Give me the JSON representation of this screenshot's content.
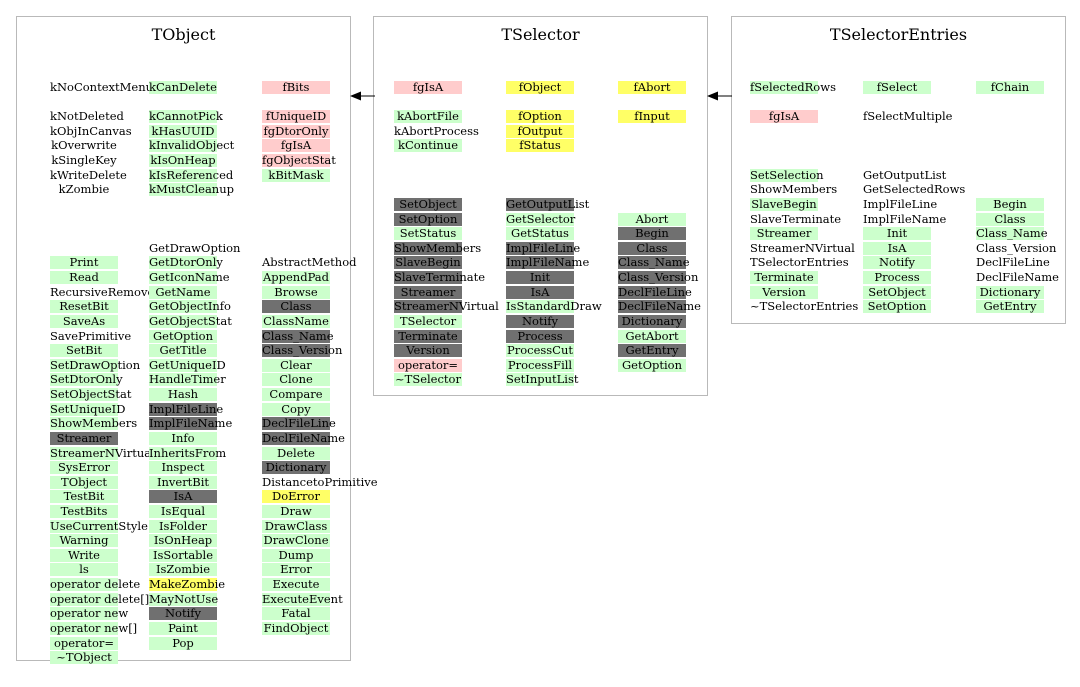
{
  "colors": {
    "green": "#ccffcc",
    "pink": "#ffcccc",
    "yellow": "#ffff66",
    "dark": "#707070",
    "border": "#b9b9b9"
  },
  "classes": [
    {
      "id": "tobject",
      "title": "TObject",
      "columns": [
        {
          "items": [
            [
              "kNoContextMenu",
              ""
            ],
            null,
            [
              "kNotDeleted",
              ""
            ],
            [
              "kObjInCanvas",
              ""
            ],
            [
              "kOverwrite",
              ""
            ],
            [
              "kSingleKey",
              ""
            ],
            [
              "kWriteDelete",
              ""
            ],
            [
              "kZombie",
              ""
            ],
            null,
            null,
            null,
            null,
            [
              "Print",
              "g"
            ],
            [
              "Read",
              "g"
            ],
            [
              "RecursiveRemove",
              ""
            ],
            [
              "ResetBit",
              "g"
            ],
            [
              "SaveAs",
              "g"
            ],
            [
              "SavePrimitive",
              ""
            ],
            [
              "SetBit",
              "g"
            ],
            [
              "SetDrawOption",
              "g"
            ],
            [
              "SetDtorOnly",
              "g"
            ],
            [
              "SetObjectStat",
              "g"
            ],
            [
              "SetUniqueID",
              "g"
            ],
            [
              "ShowMembers",
              "g"
            ],
            [
              "Streamer",
              "d"
            ],
            [
              "StreamerNVirtual",
              "g"
            ],
            [
              "SysError",
              "g"
            ],
            [
              "TObject",
              "g"
            ],
            [
              "TestBit",
              "g"
            ],
            [
              "TestBits",
              "g"
            ],
            [
              "UseCurrentStyle",
              "g"
            ],
            [
              "Warning",
              "g"
            ],
            [
              "Write",
              "g"
            ],
            [
              "ls",
              "g"
            ],
            [
              "operator delete",
              "g"
            ],
            [
              "operator delete[]",
              "g"
            ],
            [
              "operator new",
              "g"
            ],
            [
              "operator new[]",
              "g"
            ],
            [
              "operator=",
              "g"
            ],
            [
              "~TObject",
              "g"
            ]
          ]
        },
        {
          "items": [
            [
              "kCanDelete",
              "g"
            ],
            null,
            [
              "kCannotPick",
              "g"
            ],
            [
              "kHasUUID",
              "g"
            ],
            [
              "kInvalidObject",
              "g"
            ],
            [
              "kIsOnHeap",
              "g"
            ],
            [
              "kIsReferenced",
              "g"
            ],
            [
              "kMustCleanup",
              "g"
            ],
            null,
            null,
            null,
            [
              "GetDrawOption",
              ""
            ],
            [
              "GetDtorOnly",
              "g"
            ],
            [
              "GetIconName",
              "g"
            ],
            [
              "GetName",
              "g"
            ],
            [
              "GetObjectInfo",
              "g"
            ],
            [
              "GetObjectStat",
              "g"
            ],
            [
              "GetOption",
              "g"
            ],
            [
              "GetTitle",
              "g"
            ],
            [
              "GetUniqueID",
              "g"
            ],
            [
              "HandleTimer",
              "g"
            ],
            [
              "Hash",
              "g"
            ],
            [
              "ImplFileLine",
              "d"
            ],
            [
              "ImplFileName",
              "d"
            ],
            [
              "Info",
              "g"
            ],
            [
              "InheritsFrom",
              "g"
            ],
            [
              "Inspect",
              "g"
            ],
            [
              "InvertBit",
              "g"
            ],
            [
              "IsA",
              "d"
            ],
            [
              "IsEqual",
              "g"
            ],
            [
              "IsFolder",
              "g"
            ],
            [
              "IsOnHeap",
              "g"
            ],
            [
              "IsSortable",
              "g"
            ],
            [
              "IsZombie",
              "g"
            ],
            [
              "MakeZombie",
              "y"
            ],
            [
              "MayNotUse",
              "g"
            ],
            [
              "Notify",
              "d"
            ],
            [
              "Paint",
              "g"
            ],
            [
              "Pop",
              "g"
            ]
          ]
        },
        {
          "items": [
            [
              "fBits",
              "p"
            ],
            null,
            [
              "fUniqueID",
              "p"
            ],
            [
              "fgDtorOnly",
              "p"
            ],
            [
              "fgIsA",
              "p"
            ],
            [
              "fgObjectStat",
              "p"
            ],
            [
              "kBitMask",
              "g"
            ],
            null,
            null,
            null,
            null,
            null,
            [
              "AbstractMethod",
              ""
            ],
            [
              "AppendPad",
              "g"
            ],
            [
              "Browse",
              "g"
            ],
            [
              "Class",
              "d"
            ],
            [
              "ClassName",
              "g"
            ],
            [
              "Class_Name",
              "d"
            ],
            [
              "Class_Version",
              "d"
            ],
            [
              "Clear",
              "g"
            ],
            [
              "Clone",
              "g"
            ],
            [
              "Compare",
              "g"
            ],
            [
              "Copy",
              "g"
            ],
            [
              "DeclFileLine",
              "d"
            ],
            [
              "DeclFileName",
              "d"
            ],
            [
              "Delete",
              "g"
            ],
            [
              "Dictionary",
              "d"
            ],
            [
              "DistancetoPrimitive",
              ""
            ],
            [
              "DoError",
              "y"
            ],
            [
              "Draw",
              "g"
            ],
            [
              "DrawClass",
              "g"
            ],
            [
              "DrawClone",
              "g"
            ],
            [
              "Dump",
              "g"
            ],
            [
              "Error",
              "g"
            ],
            [
              "Execute",
              "g"
            ],
            [
              "ExecuteEvent",
              "g"
            ],
            [
              "Fatal",
              "g"
            ],
            [
              "FindObject",
              "g"
            ]
          ]
        }
      ]
    },
    {
      "id": "tselector",
      "title": "TSelector",
      "columns": [
        {
          "items": [
            [
              "fgIsA",
              "p"
            ],
            null,
            [
              "kAbortFile",
              "g"
            ],
            [
              "kAbortProcess",
              ""
            ],
            [
              "kContinue",
              "g"
            ],
            null,
            null,
            null,
            [
              "SetObject",
              "d"
            ],
            [
              "SetOption",
              "d"
            ],
            [
              "SetStatus",
              "g"
            ],
            [
              "ShowMembers",
              "d"
            ],
            [
              "SlaveBegin",
              "d"
            ],
            [
              "SlaveTerminate",
              "d"
            ],
            [
              "Streamer",
              "d"
            ],
            [
              "StreamerNVirtual",
              "d"
            ],
            [
              "TSelector",
              "g"
            ],
            [
              "Terminate",
              "d"
            ],
            [
              "Version",
              "d"
            ],
            [
              "operator=",
              "p"
            ],
            [
              "~TSelector",
              "g"
            ]
          ]
        },
        {
          "items": [
            [
              "fObject",
              "y"
            ],
            null,
            [
              "fOption",
              "y"
            ],
            [
              "fOutput",
              "y"
            ],
            [
              "fStatus",
              "y"
            ],
            null,
            null,
            null,
            [
              "GetOutputList",
              "d"
            ],
            [
              "GetSelector",
              "g"
            ],
            [
              "GetStatus",
              "g"
            ],
            [
              "ImplFileLine",
              "d"
            ],
            [
              "ImplFileName",
              "d"
            ],
            [
              "Init",
              "d"
            ],
            [
              "IsA",
              "d"
            ],
            [
              "IsStandardDraw",
              "g"
            ],
            [
              "Notify",
              "d"
            ],
            [
              "Process",
              "d"
            ],
            [
              "ProcessCut",
              "g"
            ],
            [
              "ProcessFill",
              "g"
            ],
            [
              "SetInputList",
              "g"
            ]
          ]
        },
        {
          "items": [
            [
              "fAbort",
              "y"
            ],
            null,
            [
              "fInput",
              "y"
            ],
            null,
            null,
            null,
            null,
            null,
            null,
            [
              "Abort",
              "g"
            ],
            [
              "Begin",
              "d"
            ],
            [
              "Class",
              "d"
            ],
            [
              "Class_Name",
              "d"
            ],
            [
              "Class_Version",
              "d"
            ],
            [
              "DeclFileLine",
              "d"
            ],
            [
              "DeclFileName",
              "d"
            ],
            [
              "Dictionary",
              "d"
            ],
            [
              "GetAbort",
              "g"
            ],
            [
              "GetEntry",
              "d"
            ],
            [
              "GetOption",
              "g"
            ]
          ]
        }
      ]
    },
    {
      "id": "tselectorentries",
      "title": "TSelectorEntries",
      "columns": [
        {
          "items": [
            [
              "fSelectedRows",
              "g"
            ],
            null,
            [
              "fgIsA",
              "p"
            ],
            null,
            null,
            null,
            [
              "SetSelection",
              "g"
            ],
            [
              "ShowMembers",
              ""
            ],
            [
              "SlaveBegin",
              "g"
            ],
            [
              "SlaveTerminate",
              ""
            ],
            [
              "Streamer",
              "g"
            ],
            [
              "StreamerNVirtual",
              ""
            ],
            [
              "TSelectorEntries",
              ""
            ],
            [
              "Terminate",
              "g"
            ],
            [
              "Version",
              "g"
            ],
            [
              "~TSelectorEntries",
              ""
            ]
          ]
        },
        {
          "items": [
            [
              "fSelect",
              "g"
            ],
            null,
            [
              "fSelectMultiple",
              ""
            ],
            null,
            null,
            null,
            [
              "GetOutputList",
              ""
            ],
            [
              "GetSelectedRows",
              ""
            ],
            [
              "ImplFileLine",
              ""
            ],
            [
              "ImplFileName",
              ""
            ],
            [
              "Init",
              "g"
            ],
            [
              "IsA",
              "g"
            ],
            [
              "Notify",
              "g"
            ],
            [
              "Process",
              "g"
            ],
            [
              "SetObject",
              "g"
            ],
            [
              "SetOption",
              "g"
            ]
          ]
        },
        {
          "items": [
            [
              "fChain",
              "g"
            ],
            null,
            null,
            null,
            null,
            null,
            null,
            null,
            [
              "Begin",
              "g"
            ],
            [
              "Class",
              "g"
            ],
            [
              "Class_Name",
              "g"
            ],
            [
              "Class_Version",
              ""
            ],
            [
              "DeclFileLine",
              ""
            ],
            [
              "DeclFileName",
              ""
            ],
            [
              "Dictionary",
              "g"
            ],
            [
              "GetEntry",
              "g"
            ]
          ]
        }
      ]
    }
  ]
}
